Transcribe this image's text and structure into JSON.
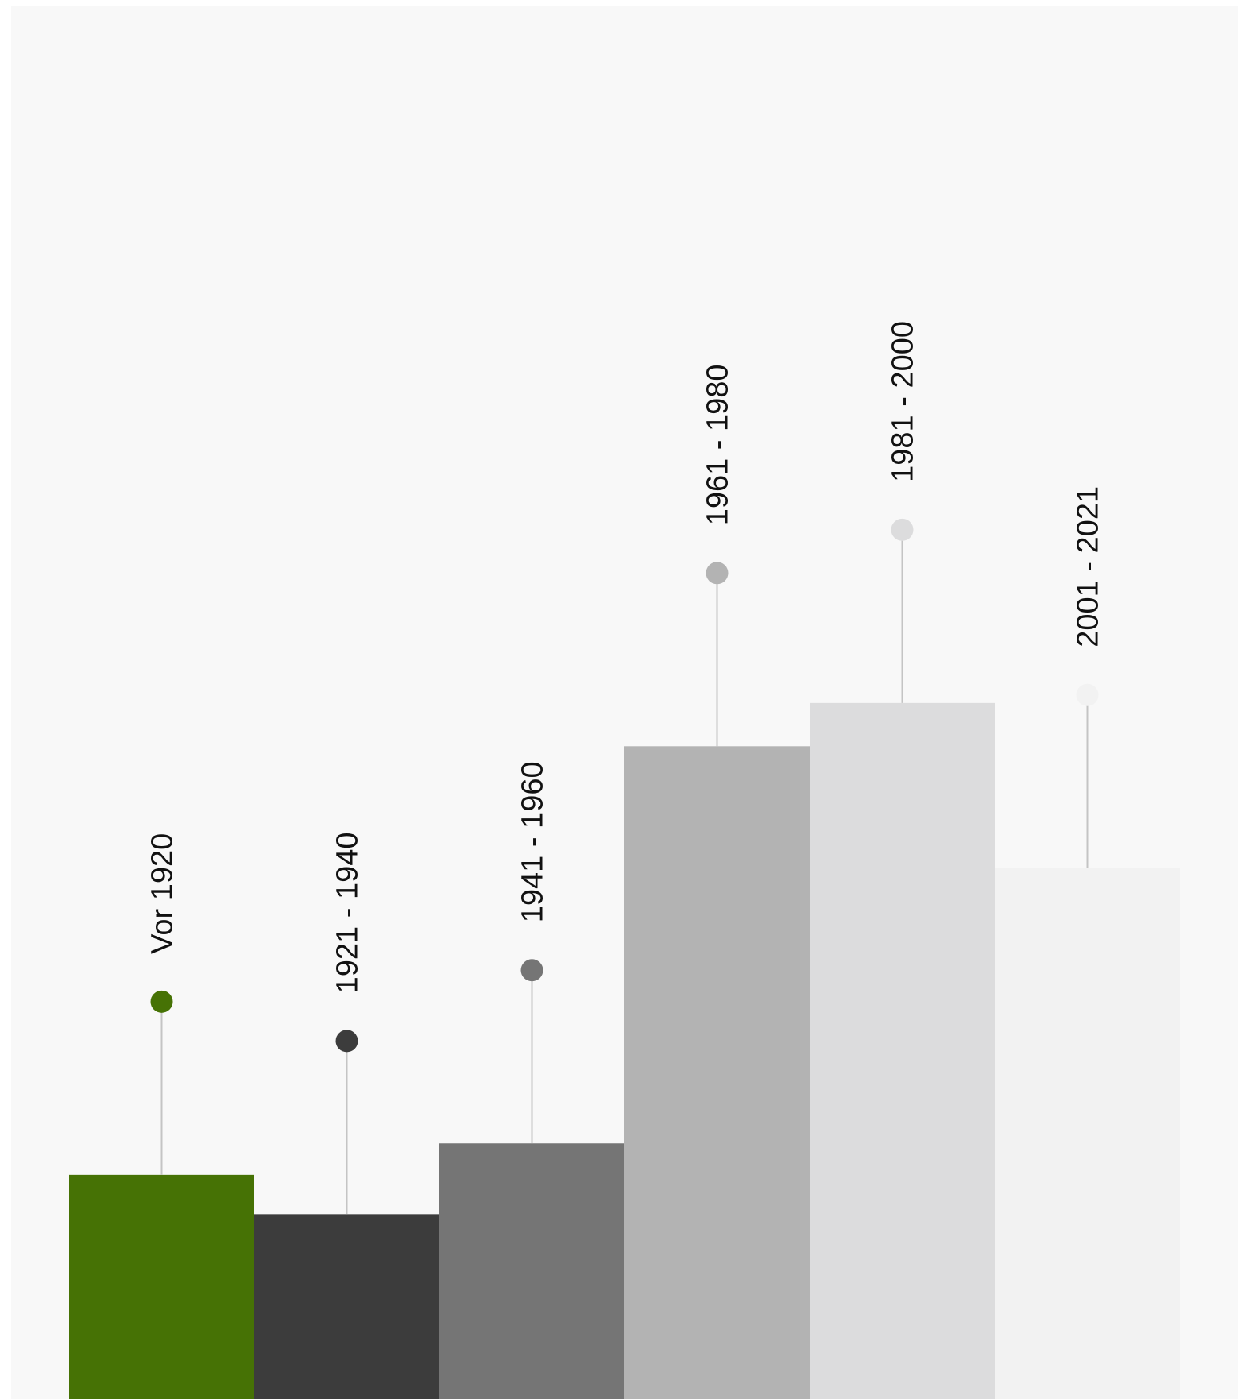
{
  "chart_data": {
    "type": "bar",
    "title": "",
    "xlabel": "",
    "ylabel": "",
    "categories": [
      "Vor 1920",
      "1921 - 1940",
      "1941 - 1960",
      "1961 - 1980",
      "1981 - 2000",
      "2001 - 2021"
    ],
    "values": [
      5.7,
      4.7,
      6.5,
      16.6,
      17.7,
      13.5
    ],
    "ylim": [
      0,
      40
    ],
    "colors": [
      "#467205",
      "#3c3c3c",
      "#757575",
      "#b3b3b3",
      "#dcdcdd",
      "#f2f2f2"
    ],
    "grid": false,
    "legend": "none"
  }
}
